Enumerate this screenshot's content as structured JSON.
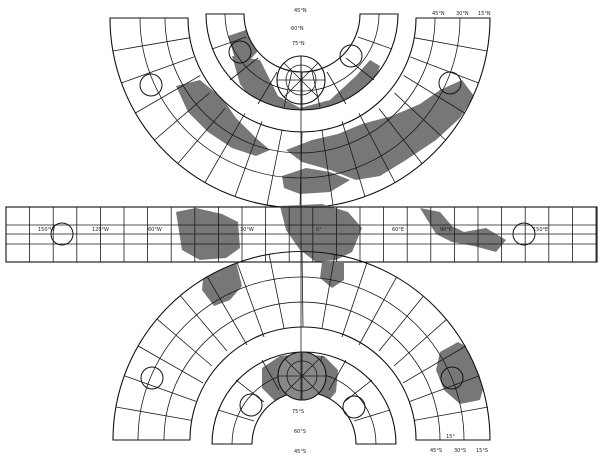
{
  "map": {
    "north_labels": {
      "top_center": "45°N",
      "ring_60": "60°N",
      "ring_75": "75°N",
      "arc_ticks": [
        "45°N",
        "30°N",
        "15°N"
      ]
    },
    "equator_labels": [
      "150°W",
      "120°W",
      "60°W",
      "30°W",
      "0°",
      "60°E",
      "90°E",
      "150°E"
    ],
    "south_labels": {
      "ring_75": "75°S",
      "ring_60": "60°S",
      "bottom_center": "45°S",
      "arc_ticks": [
        "45°S",
        "30°S",
        "15°S"
      ],
      "corner_mark": "15°"
    },
    "colors": {
      "land": "#777777",
      "lines": "#1a1a1a",
      "background": "#ffffff"
    }
  }
}
